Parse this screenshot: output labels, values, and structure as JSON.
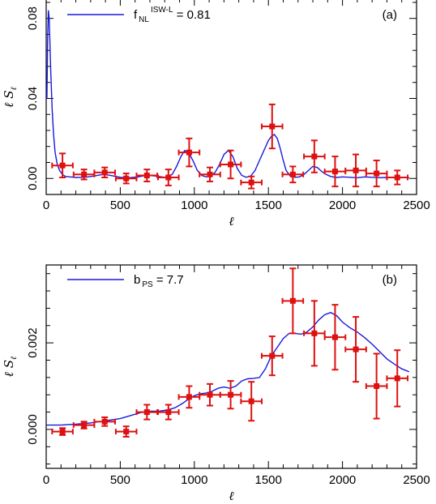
{
  "chart_data": [
    {
      "type": "scatter",
      "panel_tag": "(a)",
      "xlabel": "ℓ",
      "ylabel": "ℓ S",
      "ylabel_sub": "ℓ",
      "xlim": [
        0,
        2500
      ],
      "ylim": [
        -0.008,
        0.09
      ],
      "xticks": [
        0,
        500,
        1000,
        1500,
        2000,
        2500
      ],
      "xtick_labels": [
        "0",
        "500",
        "1000",
        "1500",
        "2000",
        "2500"
      ],
      "yticks": [
        0.0,
        0.04,
        0.08
      ],
      "ytick_labels": [
        "0.00",
        "0.04",
        "0.08"
      ],
      "legend": {
        "position": "top-left",
        "prefix": "f",
        "sub": "NL",
        "sup": "ISW-L",
        "suffix": " = 0.81"
      },
      "colors": {
        "model": "#1a1adc",
        "data": "#dd1111"
      },
      "series": [
        {
          "kind": "line",
          "x": [
            5,
            10,
            15,
            20,
            25,
            30,
            40,
            50,
            60,
            75,
            90,
            110,
            130,
            160,
            200,
            260,
            320,
            380,
            430,
            500,
            560,
            620,
            680,
            740,
            800,
            850,
            880,
            910,
            935,
            960,
            990,
            1020,
            1050,
            1080,
            1110,
            1140,
            1170,
            1200,
            1230,
            1260,
            1290,
            1320,
            1350,
            1380,
            1410,
            1440,
            1470,
            1500,
            1520,
            1540,
            1560,
            1580,
            1600,
            1620,
            1650,
            1680,
            1710,
            1740,
            1770,
            1800,
            1830,
            1860,
            1890,
            1920,
            1960,
            2000,
            2050,
            2100,
            2150,
            2200,
            2250,
            2300,
            2350,
            2400,
            2450
          ],
          "y": [
            0.04,
            0.07,
            0.084,
            0.08,
            0.068,
            0.055,
            0.035,
            0.022,
            0.013,
            0.007,
            0.004,
            0.002,
            0.001,
            0.0008,
            0.0005,
            0.0006,
            0.0012,
            0.002,
            0.0016,
            0.0006,
            0.0004,
            0.0008,
            0.0016,
            0.0012,
            0.0006,
            0.002,
            0.006,
            0.011,
            0.014,
            0.013,
            0.009,
            0.004,
            0.0015,
            0.0008,
            0.0012,
            0.003,
            0.007,
            0.012,
            0.014,
            0.011,
            0.005,
            0.0015,
            0.0006,
            0.0012,
            0.004,
            0.009,
            0.014,
            0.019,
            0.021,
            0.022,
            0.02,
            0.015,
            0.009,
            0.004,
            0.001,
            0.0006,
            0.0008,
            0.002,
            0.004,
            0.006,
            0.0055,
            0.0035,
            0.002,
            0.001,
            0.0005,
            0.0008,
            0.0006,
            0.0004,
            0.0008,
            0.0006,
            0.0004,
            0.0005,
            0.0004,
            0.0005,
            0.0004
          ]
        },
        {
          "kind": "points",
          "x": [
            110,
            255,
            395,
            540,
            680,
            825,
            965,
            1105,
            1245,
            1385,
            1525,
            1665,
            1810,
            1950,
            2090,
            2230,
            2370
          ],
          "y": [
            0.0065,
            0.002,
            0.003,
            0.0,
            0.0015,
            0.0005,
            0.013,
            0.002,
            0.007,
            -0.002,
            0.026,
            0.002,
            0.011,
            0.0035,
            0.004,
            0.0025,
            0.0005
          ],
          "yerr": [
            0.006,
            0.0025,
            0.0025,
            0.0025,
            0.003,
            0.004,
            0.007,
            0.0035,
            0.007,
            0.003,
            0.011,
            0.004,
            0.008,
            0.0075,
            0.008,
            0.0065,
            0.0035
          ],
          "xerr": [
            70,
            70,
            70,
            70,
            70,
            70,
            70,
            70,
            70,
            70,
            70,
            70,
            70,
            70,
            70,
            70,
            70
          ]
        }
      ]
    },
    {
      "type": "scatter",
      "panel_tag": "(b)",
      "xlabel": "ℓ",
      "ylabel": "ℓ S",
      "ylabel_sub": "ℓ",
      "xlim": [
        0,
        2500
      ],
      "ylim": [
        -0.0009,
        0.0038
      ],
      "xticks": [
        0,
        500,
        1000,
        1500,
        2000,
        2500
      ],
      "xtick_labels": [
        "0",
        "500",
        "1000",
        "1500",
        "2000",
        "2500"
      ],
      "yticks": [
        0.0,
        0.002
      ],
      "ytick_labels": [
        "0.000",
        "0.002"
      ],
      "legend": {
        "position": "top-left",
        "prefix": "b",
        "sub": "PS",
        "sup": "",
        "suffix": " = 7.7"
      },
      "colors": {
        "model": "#1a1adc",
        "data": "#dd1111"
      },
      "series": [
        {
          "kind": "line",
          "x": [
            0,
            100,
            200,
            300,
            400,
            500,
            550,
            600,
            650,
            700,
            760,
            820,
            870,
            920,
            960,
            1000,
            1040,
            1080,
            1120,
            1160,
            1200,
            1240,
            1280,
            1320,
            1360,
            1400,
            1440,
            1480,
            1520,
            1560,
            1600,
            1640,
            1680,
            1720,
            1760,
            1800,
            1840,
            1880,
            1920,
            1960,
            2000,
            2050,
            2100,
            2150,
            2200,
            2250,
            2300,
            2350,
            2400,
            2450
          ],
          "y": [
            0.0001,
            0.0001,
            0.00012,
            0.00015,
            0.0002,
            0.00025,
            0.0003,
            0.00035,
            0.0004,
            0.00042,
            0.00042,
            0.00045,
            0.0005,
            0.0006,
            0.0007,
            0.00078,
            0.00082,
            0.00084,
            0.00088,
            0.00095,
            0.00098,
            0.00095,
            0.001,
            0.00112,
            0.00117,
            0.00118,
            0.0012,
            0.0014,
            0.0017,
            0.0019,
            0.0021,
            0.00222,
            0.00222,
            0.0022,
            0.00225,
            0.00237,
            0.00253,
            0.00265,
            0.0027,
            0.00263,
            0.00248,
            0.00235,
            0.00225,
            0.00212,
            0.00197,
            0.0018,
            0.00163,
            0.00151,
            0.0014,
            0.00133
          ]
        },
        {
          "kind": "points",
          "x": [
            110,
            255,
            395,
            540,
            680,
            825,
            965,
            1105,
            1245,
            1385,
            1525,
            1665,
            1810,
            1950,
            2090,
            2230,
            2370
          ],
          "y": [
            -5e-05,
            0.0001,
            0.00018,
            -5e-05,
            0.0004,
            0.0004,
            0.00075,
            0.0008,
            0.0008,
            0.00065,
            0.0017,
            0.00297,
            0.00222,
            0.00213,
            0.00185,
            0.001,
            0.00118
          ],
          "yerr": [
            8e-05,
            8e-05,
            0.0001,
            0.00012,
            0.00017,
            0.00017,
            0.00025,
            0.00025,
            0.00032,
            0.00045,
            0.00045,
            0.00075,
            0.00075,
            0.00075,
            0.00075,
            0.00075,
            0.00065
          ],
          "xerr": [
            70,
            70,
            70,
            70,
            70,
            70,
            70,
            70,
            70,
            70,
            70,
            70,
            70,
            70,
            70,
            70,
            70
          ]
        }
      ]
    }
  ]
}
